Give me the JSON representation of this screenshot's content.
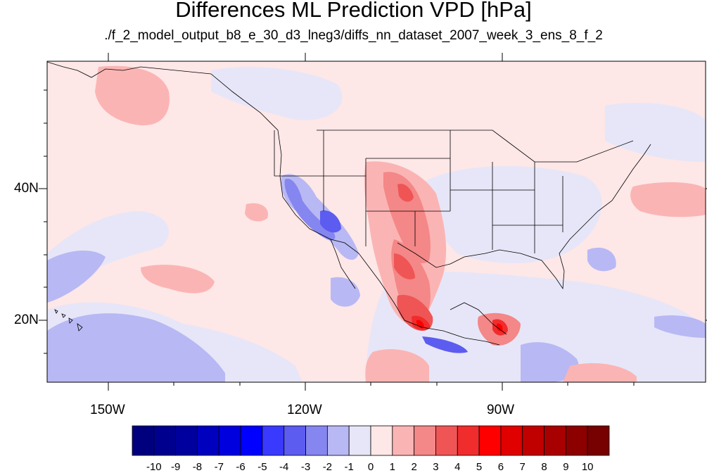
{
  "title": "Differences ML Prediction VPD [hPa]",
  "subtitle": "./f_2_model_output_b8_e_30_d3_lneg3/diffs_nn_dataset_2007_week_3_ens_8_f_2",
  "lat_labels": [
    "40N",
    "20N"
  ],
  "lon_labels": [
    "150W",
    "120W",
    "90W"
  ],
  "colorbar": {
    "ticks": [
      "-10",
      "-9",
      "-8",
      "-7",
      "-6",
      "-5",
      "-4",
      "-3",
      "-2",
      "-1",
      "0",
      "1",
      "2",
      "3",
      "4",
      "5",
      "6",
      "7",
      "8",
      "9",
      "10"
    ],
    "colors": [
      "#00007f",
      "#00008f",
      "#00009f",
      "#0000bf",
      "#0000df",
      "#0000ff",
      "#3a3aff",
      "#5c5cf0",
      "#8686f0",
      "#b8b8f4",
      "#e6e6f8",
      "#fde7e7",
      "#fbb4b4",
      "#f48787",
      "#ef5555",
      "#f02c2c",
      "#ff0000",
      "#e00000",
      "#c00000",
      "#a80000",
      "#8c0000",
      "#770000"
    ]
  },
  "map_extent": {
    "lon_min": -160,
    "lon_max": -60,
    "lat_min": 10,
    "lat_max": 59
  },
  "colors": {
    "background_positive": "#fde7e7",
    "background_negative": "#e6e6f8",
    "coast": "#000000"
  }
}
